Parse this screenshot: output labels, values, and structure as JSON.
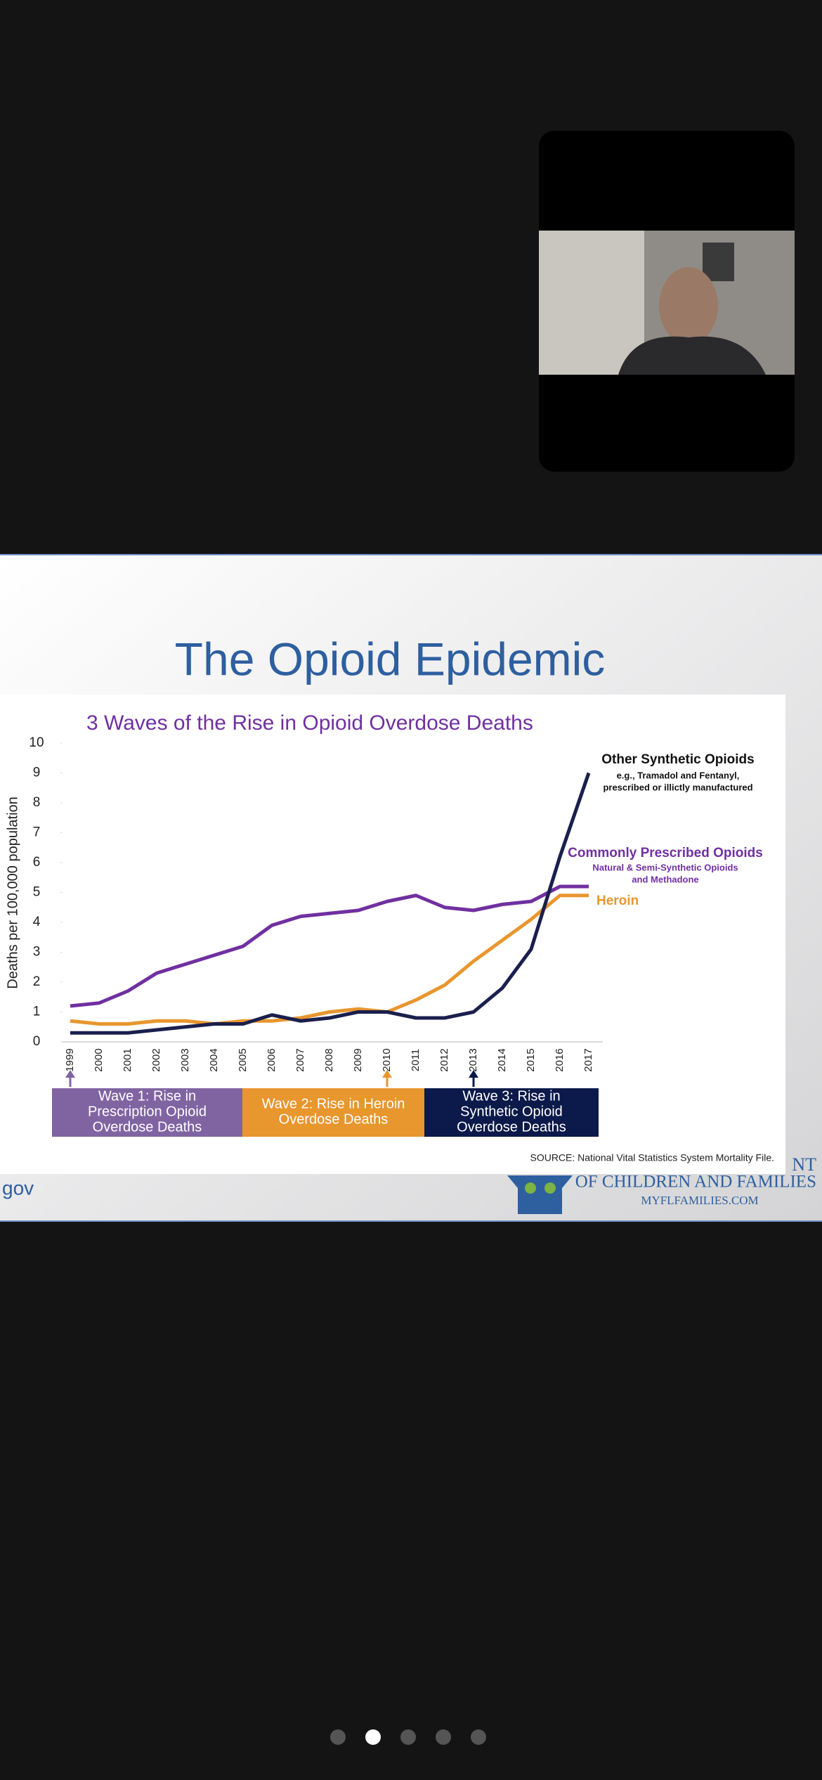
{
  "slide": {
    "title": "The Opioid Epidemic",
    "source": "SOURCE: National Vital Statistics System Mortality File.",
    "footer": {
      "left": "gov",
      "org_lines": [
        "NT",
        "OF CHILDREN AND FAMILIES"
      ],
      "website": "MYFLFAMILIES.COM"
    }
  },
  "chart_data": {
    "type": "line",
    "title": "3 Waves of the Rise in Opioid Overdose Deaths",
    "y_label": "Deaths per 100,000 population",
    "categories": [
      "1999",
      "2000",
      "2001",
      "2002",
      "2003",
      "2004",
      "2005",
      "2006",
      "2007",
      "2008",
      "2009",
      "2010",
      "2011",
      "2012",
      "2013",
      "2014",
      "2015",
      "2016",
      "2017"
    ],
    "ylim": [
      0,
      10
    ],
    "yticks": [
      0,
      1,
      2,
      3,
      4,
      5,
      6,
      7,
      8,
      9,
      10
    ],
    "series": [
      {
        "name": "Commonly Prescribed Opioids",
        "note": [
          "Natural & Semi-Synthetic Opioids",
          "and Methadone"
        ],
        "color": "#7030a0",
        "values": [
          1.2,
          1.3,
          1.7,
          2.3,
          2.6,
          2.9,
          3.2,
          3.9,
          4.2,
          4.3,
          4.4,
          4.7,
          4.9,
          4.5,
          4.4,
          4.6,
          4.7,
          5.2,
          5.2
        ]
      },
      {
        "name": "Heroin",
        "note": [],
        "color": "#e8962e",
        "values": [
          0.7,
          0.6,
          0.6,
          0.7,
          0.7,
          0.6,
          0.7,
          0.7,
          0.8,
          1.0,
          1.1,
          1.0,
          1.4,
          1.9,
          2.7,
          3.4,
          4.1,
          4.9,
          4.9
        ]
      },
      {
        "name": "Other Synthetic Opioids",
        "note": [
          "e.g., Tramadol and Fentanyl,",
          "prescribed or illictly manufactured"
        ],
        "color": "#1a1f4d",
        "values": [
          0.3,
          0.3,
          0.3,
          0.4,
          0.5,
          0.6,
          0.6,
          0.9,
          0.7,
          0.8,
          1.0,
          1.0,
          0.8,
          0.8,
          1.0,
          1.8,
          3.1,
          6.2,
          9.0
        ]
      }
    ],
    "waves": [
      {
        "label": [
          "Wave 1: Rise in",
          "Prescription Opioid",
          "Overdose Deaths"
        ],
        "color": "#8064a2",
        "start": "1999"
      },
      {
        "label": [
          "Wave 2: Rise in Heroin",
          "Overdose Deaths"
        ],
        "color": "#e8962e",
        "start": "2010"
      },
      {
        "label": [
          "Wave 3: Rise in",
          "Synthetic Opioid",
          "Overdose Deaths"
        ],
        "color": "#0b1a4a",
        "start": "2013"
      }
    ]
  }
}
